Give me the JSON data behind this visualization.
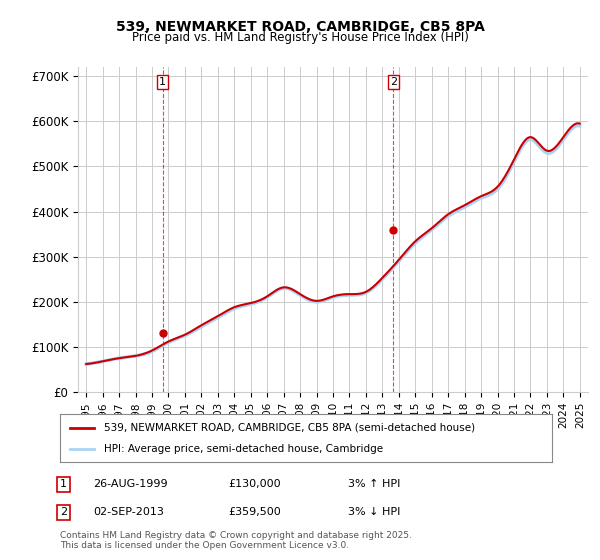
{
  "title_line1": "539, NEWMARKET ROAD, CAMBRIDGE, CB5 8PA",
  "title_line2": "Price paid vs. HM Land Registry's House Price Index (HPI)",
  "ylabel": "",
  "background_color": "#ffffff",
  "plot_bg_color": "#ffffff",
  "grid_color": "#cccccc",
  "hpi_color": "#aad4f5",
  "price_color": "#cc0000",
  "marker1_date_idx": 4.67,
  "marker2_date_idx": 18.5,
  "purchase1": {
    "label": "1",
    "date": "26-AUG-1999",
    "price": "£130,000",
    "hpi_note": "3% ↑ HPI"
  },
  "purchase2": {
    "label": "2",
    "date": "02-SEP-2013",
    "price": "£359,500",
    "hpi_note": "3% ↓ HPI"
  },
  "legend_line1": "539, NEWMARKET ROAD, CAMBRIDGE, CB5 8PA (semi-detached house)",
  "legend_line2": "HPI: Average price, semi-detached house, Cambridge",
  "footer": "Contains HM Land Registry data © Crown copyright and database right 2025.\nThis data is licensed under the Open Government Licence v3.0.",
  "ylim": [
    0,
    720000
  ],
  "yticks": [
    0,
    100000,
    200000,
    300000,
    400000,
    500000,
    600000,
    700000
  ],
  "ytick_labels": [
    "£0",
    "£100K",
    "£200K",
    "£300K",
    "£400K",
    "£500K",
    "£600K",
    "£700K"
  ],
  "years": [
    1995,
    1996,
    1997,
    1998,
    1999,
    2000,
    2001,
    2002,
    2003,
    2004,
    2005,
    2006,
    2007,
    2008,
    2009,
    2010,
    2011,
    2012,
    2013,
    2014,
    2015,
    2016,
    2017,
    2018,
    2019,
    2020,
    2021,
    2022,
    2023,
    2024,
    2025
  ],
  "hpi_values": [
    62000,
    68000,
    75000,
    80000,
    90000,
    110000,
    125000,
    145000,
    165000,
    185000,
    195000,
    210000,
    230000,
    215000,
    200000,
    210000,
    215000,
    220000,
    250000,
    290000,
    330000,
    360000,
    390000,
    410000,
    430000,
    450000,
    510000,
    560000,
    530000,
    560000,
    590000
  ],
  "price_values": [
    62000,
    68000,
    75000,
    80000,
    92000,
    112000,
    127000,
    148000,
    168000,
    188000,
    197000,
    212000,
    232000,
    217000,
    202000,
    212000,
    217000,
    222000,
    253000,
    293000,
    334000,
    363000,
    394000,
    414000,
    434000,
    455000,
    515000,
    565000,
    535000,
    565000,
    595000
  ]
}
